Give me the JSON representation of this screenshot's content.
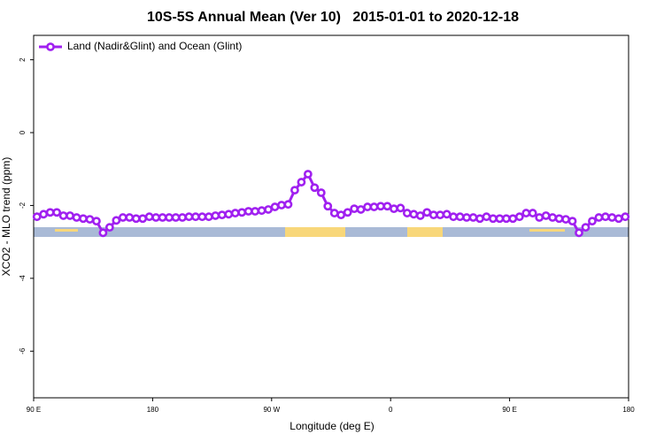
{
  "chart_data": {
    "type": "line",
    "title": "10S-5S Annual Mean (Ver 10)   2015-01-01 to 2020-12-18",
    "xlabel": "Longitude (deg E)",
    "ylabel": "XCO2 - MLO trend (ppm)",
    "xlim": [
      90,
      540
    ],
    "xticks": [
      {
        "value": 90,
        "label": "90 E"
      },
      180,
      {
        "value": 270,
        "label": "90 W"
      },
      {
        "value": 360,
        "label": "0"
      },
      {
        "value": 450,
        "label": "90 E"
      },
      {
        "value": 540,
        "label": "180"
      }
    ],
    "ylim": [
      -7.28,
      2.67
    ],
    "yticks": [
      -6,
      -4,
      -2,
      0,
      2
    ],
    "legend": "top-left",
    "x": [
      92.5,
      97.5,
      102.5,
      107.5,
      112.5,
      117.5,
      122.5,
      127.5,
      132.5,
      137.5,
      142.5,
      147.5,
      152.5,
      157.5,
      162.5,
      167.5,
      172.5,
      177.5,
      182.5,
      187.5,
      192.5,
      197.5,
      202.5,
      207.5,
      212.5,
      217.5,
      222.5,
      227.5,
      232.5,
      237.5,
      242.5,
      247.5,
      252.5,
      257.5,
      262.5,
      267.5,
      272.5,
      277.5,
      282.5,
      287.5,
      292.5,
      297.5,
      302.5,
      307.5,
      312.5,
      317.5,
      322.5,
      327.5,
      332.5,
      337.5,
      342.5,
      347.5,
      352.5,
      357.5,
      362.5,
      367.5,
      372.5,
      377.5,
      382.5,
      387.5,
      392.5,
      397.5,
      402.5,
      407.5,
      412.5,
      417.5,
      422.5,
      427.5,
      432.5,
      437.5,
      442.5,
      447.5,
      452.5,
      457.5,
      462.5,
      467.5,
      472.5,
      477.5,
      482.5,
      487.5,
      492.5,
      497.5,
      502.5,
      507.5,
      512.5,
      517.5,
      522.5,
      527.5,
      532.5,
      537.5
    ],
    "series": [
      {
        "name": "Land (Nadir&Glint) and Ocean (Glint)",
        "color": "#a020f0",
        "values": [
          -2.31,
          -2.24,
          -2.19,
          -2.19,
          -2.28,
          -2.28,
          -2.33,
          -2.36,
          -2.38,
          -2.43,
          -2.75,
          -2.6,
          -2.41,
          -2.33,
          -2.33,
          -2.36,
          -2.36,
          -2.31,
          -2.33,
          -2.33,
          -2.33,
          -2.33,
          -2.33,
          -2.31,
          -2.31,
          -2.31,
          -2.31,
          -2.28,
          -2.26,
          -2.24,
          -2.21,
          -2.19,
          -2.16,
          -2.16,
          -2.14,
          -2.11,
          -2.04,
          -1.99,
          -1.97,
          -1.58,
          -1.36,
          -1.14,
          -1.51,
          -1.65,
          -2.02,
          -2.21,
          -2.26,
          -2.19,
          -2.09,
          -2.11,
          -2.04,
          -2.04,
          -2.02,
          -2.02,
          -2.09,
          -2.07,
          -2.21,
          -2.24,
          -2.28,
          -2.19,
          -2.26,
          -2.26,
          -2.24,
          -2.31,
          -2.31,
          -2.33,
          -2.33,
          -2.36,
          -2.31,
          -2.36,
          -2.36,
          -2.36,
          -2.36,
          -2.31,
          -2.21,
          -2.21,
          -2.33,
          -2.28,
          -2.33,
          -2.36,
          -2.38,
          -2.43,
          -2.75,
          -2.6,
          -2.43,
          -2.33,
          -2.31,
          -2.33,
          -2.36,
          -2.31
        ]
      }
    ]
  }
}
